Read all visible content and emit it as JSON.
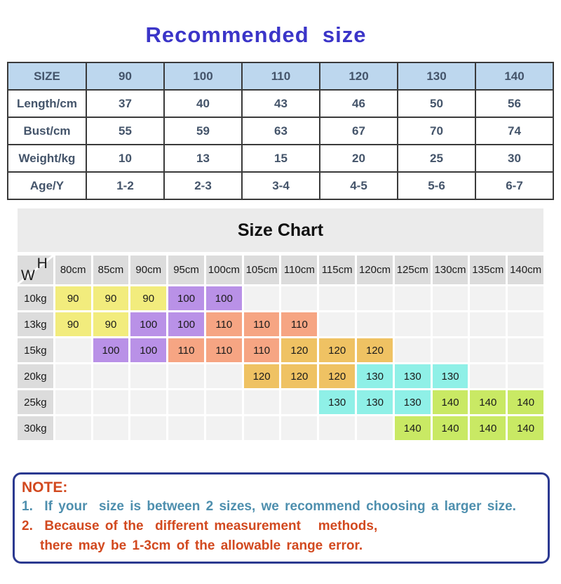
{
  "title": "Recommended  size",
  "size_table": {
    "header": [
      "SIZE",
      "90",
      "100",
      "110",
      "120",
      "130",
      "140"
    ],
    "rows": [
      {
        "label": "Length/cm",
        "values": [
          "37",
          "40",
          "43",
          "46",
          "50",
          "56"
        ]
      },
      {
        "label": "Bust/cm",
        "values": [
          "55",
          "59",
          "63",
          "67",
          "70",
          "74"
        ]
      },
      {
        "label": "Weight/kg",
        "values": [
          "10",
          "13",
          "15",
          "20",
          "25",
          "30"
        ]
      },
      {
        "label": "Age/Y",
        "values": [
          "1-2",
          "2-3",
          "3-4",
          "4-5",
          "5-6",
          "6-7"
        ]
      }
    ]
  },
  "size_chart": {
    "title": "Size Chart",
    "corner": {
      "h": "H",
      "w": "W"
    },
    "col_headers": [
      "80cm",
      "85cm",
      "90cm",
      "95cm",
      "100cm",
      "105cm",
      "110cm",
      "115cm",
      "120cm",
      "125cm",
      "130cm",
      "135cm",
      "140cm"
    ],
    "rows": [
      {
        "label": "10kg",
        "cells": [
          {
            "v": "90",
            "c": "yellow"
          },
          {
            "v": "90",
            "c": "yellow"
          },
          {
            "v": "90",
            "c": "yellow"
          },
          {
            "v": "100",
            "c": "purple"
          },
          {
            "v": "100",
            "c": "purple"
          },
          null,
          null,
          null,
          null,
          null,
          null,
          null,
          null
        ]
      },
      {
        "label": "13kg",
        "cells": [
          {
            "v": "90",
            "c": "yellow"
          },
          {
            "v": "90",
            "c": "yellow"
          },
          {
            "v": "100",
            "c": "purple"
          },
          {
            "v": "100",
            "c": "purple"
          },
          {
            "v": "110",
            "c": "salmon"
          },
          {
            "v": "110",
            "c": "salmon"
          },
          {
            "v": "110",
            "c": "salmon"
          },
          null,
          null,
          null,
          null,
          null,
          null
        ]
      },
      {
        "label": "15kg",
        "cells": [
          null,
          {
            "v": "100",
            "c": "purple"
          },
          {
            "v": "100",
            "c": "purple"
          },
          {
            "v": "110",
            "c": "salmon"
          },
          {
            "v": "110",
            "c": "salmon"
          },
          {
            "v": "110",
            "c": "salmon"
          },
          {
            "v": "120",
            "c": "orange"
          },
          {
            "v": "120",
            "c": "orange"
          },
          {
            "v": "120",
            "c": "orange"
          },
          null,
          null,
          null,
          null
        ]
      },
      {
        "label": "20kg",
        "cells": [
          null,
          null,
          null,
          null,
          null,
          {
            "v": "120",
            "c": "orange"
          },
          {
            "v": "120",
            "c": "orange"
          },
          {
            "v": "120",
            "c": "orange"
          },
          {
            "v": "130",
            "c": "cyan"
          },
          {
            "v": "130",
            "c": "cyan"
          },
          {
            "v": "130",
            "c": "cyan"
          },
          null,
          null
        ]
      },
      {
        "label": "25kg",
        "cells": [
          null,
          null,
          null,
          null,
          null,
          null,
          null,
          {
            "v": "130",
            "c": "cyan"
          },
          {
            "v": "130",
            "c": "cyan"
          },
          {
            "v": "130",
            "c": "cyan"
          },
          {
            "v": "140",
            "c": "green"
          },
          {
            "v": "140",
            "c": "green"
          },
          {
            "v": "140",
            "c": "green"
          }
        ]
      },
      {
        "label": "30kg",
        "cells": [
          null,
          null,
          null,
          null,
          null,
          null,
          null,
          null,
          null,
          {
            "v": "140",
            "c": "green"
          },
          {
            "v": "140",
            "c": "green"
          },
          {
            "v": "140",
            "c": "green"
          },
          {
            "v": "140",
            "c": "green"
          }
        ]
      }
    ]
  },
  "note": {
    "title": "NOTE:",
    "lines": [
      "1.  If your  size is between 2 sizes, we recommend choosing a larger size.",
      "2.  Because of the  different measurement   methods,",
      "there may be 1-3cm of the allowable range error."
    ]
  },
  "colors": {
    "title_blue": "#3B35C8",
    "table_header_bg": "#BDD7EE",
    "table_border": "#3A3A3A",
    "table_text": "#44546A",
    "band_bg": "#EBEBEB",
    "header_cell_bg": "#DCDCDC",
    "empty_cell_bg": "#F2F2F2",
    "cell_yellow": "#F2EC7D",
    "cell_purple": "#B991E7",
    "cell_salmon": "#F6A583",
    "cell_orange": "#EFC263",
    "cell_cyan": "#8FF0E7",
    "cell_green": "#C9E964",
    "note_border": "#2B3990",
    "note_red": "#D2491F",
    "note_blue": "#4E8FAE"
  }
}
